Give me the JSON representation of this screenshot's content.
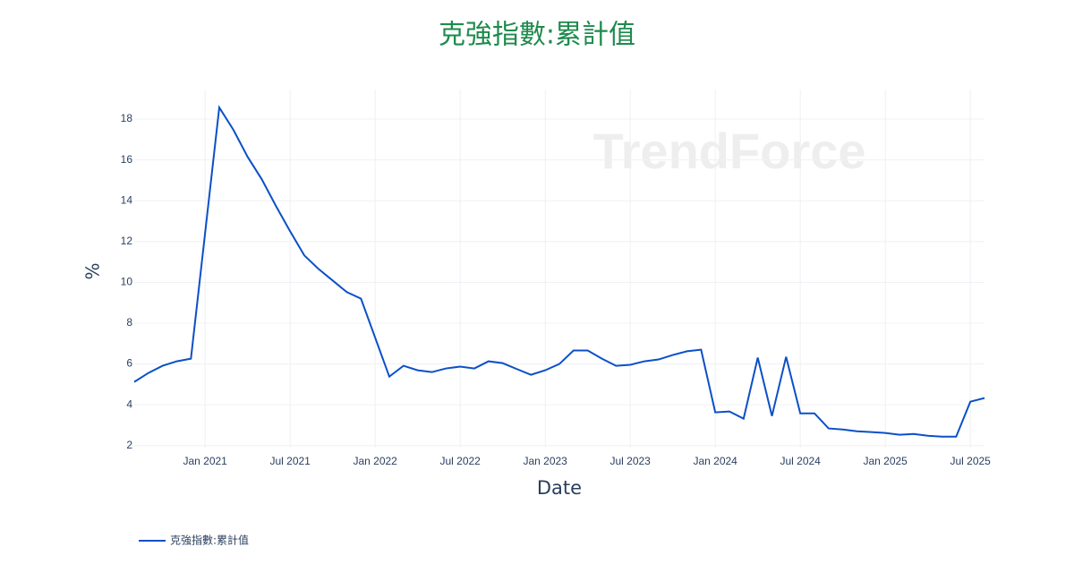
{
  "chart_data": {
    "type": "line",
    "title": "克強指數:累計值",
    "watermark": "TrendForce",
    "x_label": "Date",
    "y_label": "%",
    "x": [
      "2020-08",
      "2020-09",
      "2020-10",
      "2020-11",
      "2020-12",
      "2021-02",
      "2021-03",
      "2021-04",
      "2021-05",
      "2021-06",
      "2021-07",
      "2021-08",
      "2021-09",
      "2021-10",
      "2021-11",
      "2021-12",
      "2022-02",
      "2022-03",
      "2022-04",
      "2022-05",
      "2022-06",
      "2022-07",
      "2022-08",
      "2022-09",
      "2022-10",
      "2022-11",
      "2022-12",
      "2023-01",
      "2023-02",
      "2023-03",
      "2023-04",
      "2023-05",
      "2023-06",
      "2023-07",
      "2023-08",
      "2023-09",
      "2023-10",
      "2023-11",
      "2023-12",
      "2024-01",
      "2024-02",
      "2024-03",
      "2024-04",
      "2024-05",
      "2024-06",
      "2024-07",
      "2024-08",
      "2024-09",
      "2024-10",
      "2024-11",
      "2024-12",
      "2025-01",
      "2025-02",
      "2025-03",
      "2025-04",
      "2025-05",
      "2025-06",
      "2025-07",
      "2025-08"
    ],
    "series": [
      {
        "name": "克強指數:累計值",
        "color": "#0b50c8",
        "values": [
          5.12,
          5.56,
          5.91,
          6.13,
          6.26,
          18.57,
          17.47,
          16.15,
          15.05,
          13.74,
          12.5,
          11.32,
          10.66,
          10.09,
          9.52,
          9.2,
          5.38,
          5.91,
          5.69,
          5.6,
          5.78,
          5.87,
          5.78,
          6.13,
          6.04,
          5.75,
          5.47,
          5.69,
          6.0,
          6.66,
          6.66,
          6.26,
          5.91,
          5.96,
          6.13,
          6.22,
          6.44,
          6.62,
          6.7,
          3.63,
          3.67,
          3.32,
          6.31,
          3.45,
          6.35,
          3.58,
          3.58,
          2.84,
          2.79,
          2.7,
          2.66,
          2.62,
          2.53,
          2.57,
          2.48,
          2.44,
          2.44,
          4.15,
          4.33
        ]
      }
    ],
    "xlim": [
      "2020-08",
      "2025-08"
    ],
    "xticks": [
      {
        "value": "2021-01",
        "label": "Jan 2021"
      },
      {
        "value": "2021-07",
        "label": "Jul 2021"
      },
      {
        "value": "2022-01",
        "label": "Jan 2022"
      },
      {
        "value": "2022-07",
        "label": "Jul 2022"
      },
      {
        "value": "2023-01",
        "label": "Jan 2023"
      },
      {
        "value": "2023-07",
        "label": "Jul 2023"
      },
      {
        "value": "2024-01",
        "label": "Jan 2024"
      },
      {
        "value": "2024-07",
        "label": "Jul 2024"
      },
      {
        "value": "2025-01",
        "label": "Jan 2025"
      },
      {
        "value": "2025-07",
        "label": "Jul 2025"
      }
    ],
    "ylim": [
      1.9,
      19.45
    ],
    "yticks": [
      2,
      4,
      6,
      8,
      10,
      12,
      14,
      16,
      18
    ],
    "grid": true,
    "legend": "bottom-left"
  }
}
